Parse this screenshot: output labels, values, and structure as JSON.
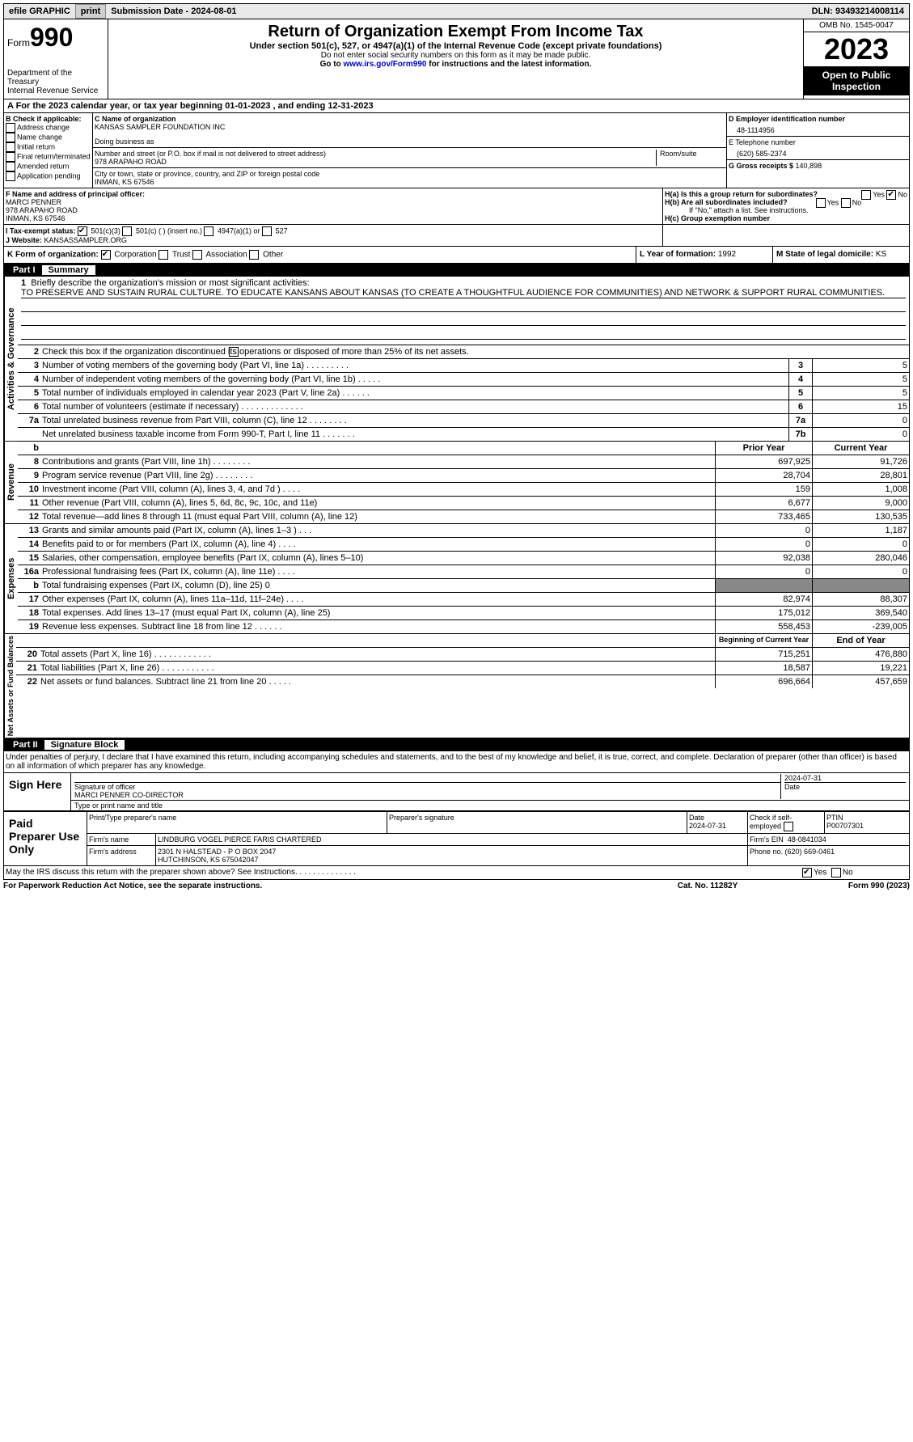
{
  "topbar": {
    "efile": "efile GRAPHIC",
    "print": "print",
    "submission_label": "Submission Date - ",
    "submission_date": "2024-08-01",
    "dln_label": "DLN: ",
    "dln": "93493214008114"
  },
  "header": {
    "form": "Form",
    "num": "990",
    "dept1": "Department of the Treasury",
    "dept2": "Internal Revenue Service",
    "title": "Return of Organization Exempt From Income Tax",
    "sub": "Under section 501(c), 527, or 4947(a)(1) of the Internal Revenue Code (except private foundations)",
    "small1": "Do not enter social security numbers on this form as it may be made public.",
    "small2_pre": "Go to ",
    "small2_link": "www.irs.gov/Form990",
    "small2_post": " for instructions and the latest information.",
    "omb": "OMB No. 1545-0047",
    "year": "2023",
    "open": "Open to Public Inspection"
  },
  "lineA": "A For the 2023 calendar year, or tax year beginning 01-01-2023    , and ending 12-31-2023",
  "boxB": {
    "label": "B Check if applicable:",
    "opts": [
      "Address change",
      "Name change",
      "Initial return",
      "Final return/terminated",
      "Amended return",
      "Application pending"
    ]
  },
  "boxC": {
    "name_label": "C Name of organization",
    "name": "KANSAS SAMPLER FOUNDATION INC",
    "dba_label": "Doing business as",
    "street_label": "Number and street (or P.O. box if mail is not delivered to street address)",
    "street": "978 ARAPAHO ROAD",
    "room_label": "Room/suite",
    "city_label": "City or town, state or province, country, and ZIP or foreign postal code",
    "city": "INMAN, KS  67546"
  },
  "boxD": {
    "label": "D Employer identification number",
    "val": "48-1114956"
  },
  "boxE": {
    "label": "E Telephone number",
    "val": "(620) 585-2374"
  },
  "boxG": {
    "label": "G Gross receipts $ ",
    "val": "140,898"
  },
  "boxF": {
    "label": "F  Name and address of principal officer:",
    "l1": "MARCI PENNER",
    "l2": "978 ARAPAHO ROAD",
    "l3": "INMAN, KS  67546"
  },
  "boxH": {
    "a": "H(a)  Is this a group return for subordinates?",
    "b": "H(b)  Are all subordinates included?",
    "bnote": "If \"No,\" attach a list. See instructions.",
    "c": "H(c)  Group exemption number",
    "yes": "Yes",
    "no": "No"
  },
  "lineI": {
    "label": "I    Tax-exempt status:",
    "o1": "501(c)(3)",
    "o2": "501(c) (  ) (insert no.)",
    "o3": "4947(a)(1) or",
    "o4": "527"
  },
  "lineJ": {
    "label": "J   Website:",
    "val": "KANSASSAMPLER.ORG"
  },
  "lineK": {
    "label": "K Form of organization:",
    "o1": "Corporation",
    "o2": "Trust",
    "o3": "Association",
    "o4": "Other"
  },
  "lineL": {
    "label": "L Year of formation: ",
    "val": "1992"
  },
  "lineM": {
    "label": "M State of legal domicile: ",
    "val": "KS"
  },
  "part1": {
    "num": "Part I",
    "title": "Summary"
  },
  "summary": {
    "vert1": "Activities & Governance",
    "vert2": "Revenue",
    "vert3": "Expenses",
    "vert4": "Net Assets or Fund Balances",
    "q1": "Briefly describe the organization's mission or most significant activities:",
    "mission": "TO PRESERVE AND SUSTAIN RURAL CULTURE. TO EDUCATE KANSANS ABOUT KANSAS (TO CREATE A THOUGHTFUL AUDIENCE FOR COMMUNITIES) AND NETWORK & SUPPORT RURAL COMMUNITIES.",
    "q2": "Check this box       if the organization discontinued its operations or disposed of more than 25% of its net assets.",
    "rows_ag": [
      {
        "n": "3",
        "t": "Number of voting members of the governing body (Part VI, line 1a)  .   .   .   .   .   .   .   .   .",
        "b": "3",
        "v": "5"
      },
      {
        "n": "4",
        "t": "Number of independent voting members of the governing body (Part VI, line 1b)  .   .   .   .   .",
        "b": "4",
        "v": "5"
      },
      {
        "n": "5",
        "t": "Total number of individuals employed in calendar year 2023 (Part V, line 2a)  .   .   .   .   .   .",
        "b": "5",
        "v": "5"
      },
      {
        "n": "6",
        "t": "Total number of volunteers (estimate if necessary)  .   .   .   .   .   .   .   .   .   .   .   .   .",
        "b": "6",
        "v": "15"
      },
      {
        "n": "7a",
        "t": "Total unrelated business revenue from Part VIII, column (C), line 12  .   .   .   .   .   .   .   .",
        "b": "7a",
        "v": "0"
      },
      {
        "n": "",
        "t": "Net unrelated business taxable income from Form 990-T, Part I, line 11  .   .   .   .   .   .   .",
        "b": "7b",
        "v": "0"
      }
    ],
    "col_prior": "Prior Year",
    "col_current": "Current Year",
    "rows_rev": [
      {
        "n": "8",
        "t": "Contributions and grants (Part VIII, line 1h)  .   .   .   .   .   .   .   .",
        "p": "697,925",
        "c": "91,726"
      },
      {
        "n": "9",
        "t": "Program service revenue (Part VIII, line 2g)  .   .   .   .   .   .   .   .",
        "p": "28,704",
        "c": "28,801"
      },
      {
        "n": "10",
        "t": "Investment income (Part VIII, column (A), lines 3, 4, and 7d )  .   .   .   .",
        "p": "159",
        "c": "1,008"
      },
      {
        "n": "11",
        "t": "Other revenue (Part VIII, column (A), lines 5, 6d, 8c, 9c, 10c, and 11e)",
        "p": "6,677",
        "c": "9,000"
      },
      {
        "n": "12",
        "t": "Total revenue—add lines 8 through 11 (must equal Part VIII, column (A), line 12)",
        "p": "733,465",
        "c": "130,535"
      }
    ],
    "rows_exp": [
      {
        "n": "13",
        "t": "Grants and similar amounts paid (Part IX, column (A), lines 1–3 )  .   .   .",
        "p": "0",
        "c": "1,187"
      },
      {
        "n": "14",
        "t": "Benefits paid to or for members (Part IX, column (A), line 4)  .   .   .   .",
        "p": "0",
        "c": "0"
      },
      {
        "n": "15",
        "t": "Salaries, other compensation, employee benefits (Part IX, column (A), lines 5–10)",
        "p": "92,038",
        "c": "280,046"
      },
      {
        "n": "16a",
        "t": "Professional fundraising fees (Part IX, column (A), line 11e)  .   .   .   .",
        "p": "0",
        "c": "0"
      },
      {
        "n": "b",
        "t": "Total fundraising expenses (Part IX, column (D), line 25) 0",
        "p": "",
        "c": "",
        "shade": true
      },
      {
        "n": "17",
        "t": "Other expenses (Part IX, column (A), lines 11a–11d, 11f–24e)  .   .   .   .",
        "p": "82,974",
        "c": "88,307"
      },
      {
        "n": "18",
        "t": "Total expenses. Add lines 13–17 (must equal Part IX, column (A), line 25)",
        "p": "175,012",
        "c": "369,540"
      },
      {
        "n": "19",
        "t": "Revenue less expenses. Subtract line 18 from line 12  .   .   .   .   .   .",
        "p": "558,453",
        "c": "-239,005"
      }
    ],
    "col_begin": "Beginning of Current Year",
    "col_end": "End of Year",
    "rows_net": [
      {
        "n": "20",
        "t": "Total assets (Part X, line 16)  .   .   .   .   .   .   .   .   .   .   .   .",
        "p": "715,251",
        "c": "476,880"
      },
      {
        "n": "21",
        "t": "Total liabilities (Part X, line 26)  .   .   .   .   .   .   .   .   .   .   .",
        "p": "18,587",
        "c": "19,221"
      },
      {
        "n": "22",
        "t": "Net assets or fund balances. Subtract line 21 from line 20  .   .   .   .   .",
        "p": "696,664",
        "c": "457,659"
      }
    ]
  },
  "part2": {
    "num": "Part II",
    "title": "Signature Block"
  },
  "sig": {
    "penalties": "Under penalties of perjury, I declare that I have examined this return, including accompanying schedules and statements, and to the best of my knowledge and belief, it is true, correct, and complete. Declaration of preparer (other than officer) is based on all information of which preparer has any knowledge.",
    "sign_here": "Sign Here",
    "sig_officer": "Signature of officer",
    "officer_name": "MARCI PENNER  CO-DIRECTOR",
    "type_name": "Type or print name and title",
    "date_label": "Date",
    "date_val": "2024-07-31"
  },
  "paid": {
    "label": "Paid Preparer Use Only",
    "h_name": "Print/Type preparer's name",
    "h_sig": "Preparer's signature",
    "h_date": "Date",
    "date_val": "2024-07-31",
    "h_check": "Check        if self-employed",
    "h_ptin": "PTIN",
    "ptin": "P00707301",
    "firm_name_label": "Firm's name",
    "firm_name": "LINDBURG VOGEL PIERCE FARIS CHARTERED",
    "firm_ein_label": "Firm's EIN",
    "firm_ein": "48-0841034",
    "firm_addr_label": "Firm's address",
    "firm_addr1": "2301 N HALSTEAD - P O BOX 2047",
    "firm_addr2": "HUTCHINSON, KS  675042047",
    "phone_label": "Phone no. ",
    "phone": "(620) 669-0461"
  },
  "discuss": {
    "text": "May the IRS discuss this return with the preparer shown above? See Instructions.  .   .   .   .   .   .   .   .   .   .   .   .   .",
    "yes": "Yes",
    "no": "No"
  },
  "footer": {
    "left": "For Paperwork Reduction Act Notice, see the separate instructions.",
    "mid": "Cat. No. 11282Y",
    "right": "Form 990 (2023)"
  }
}
